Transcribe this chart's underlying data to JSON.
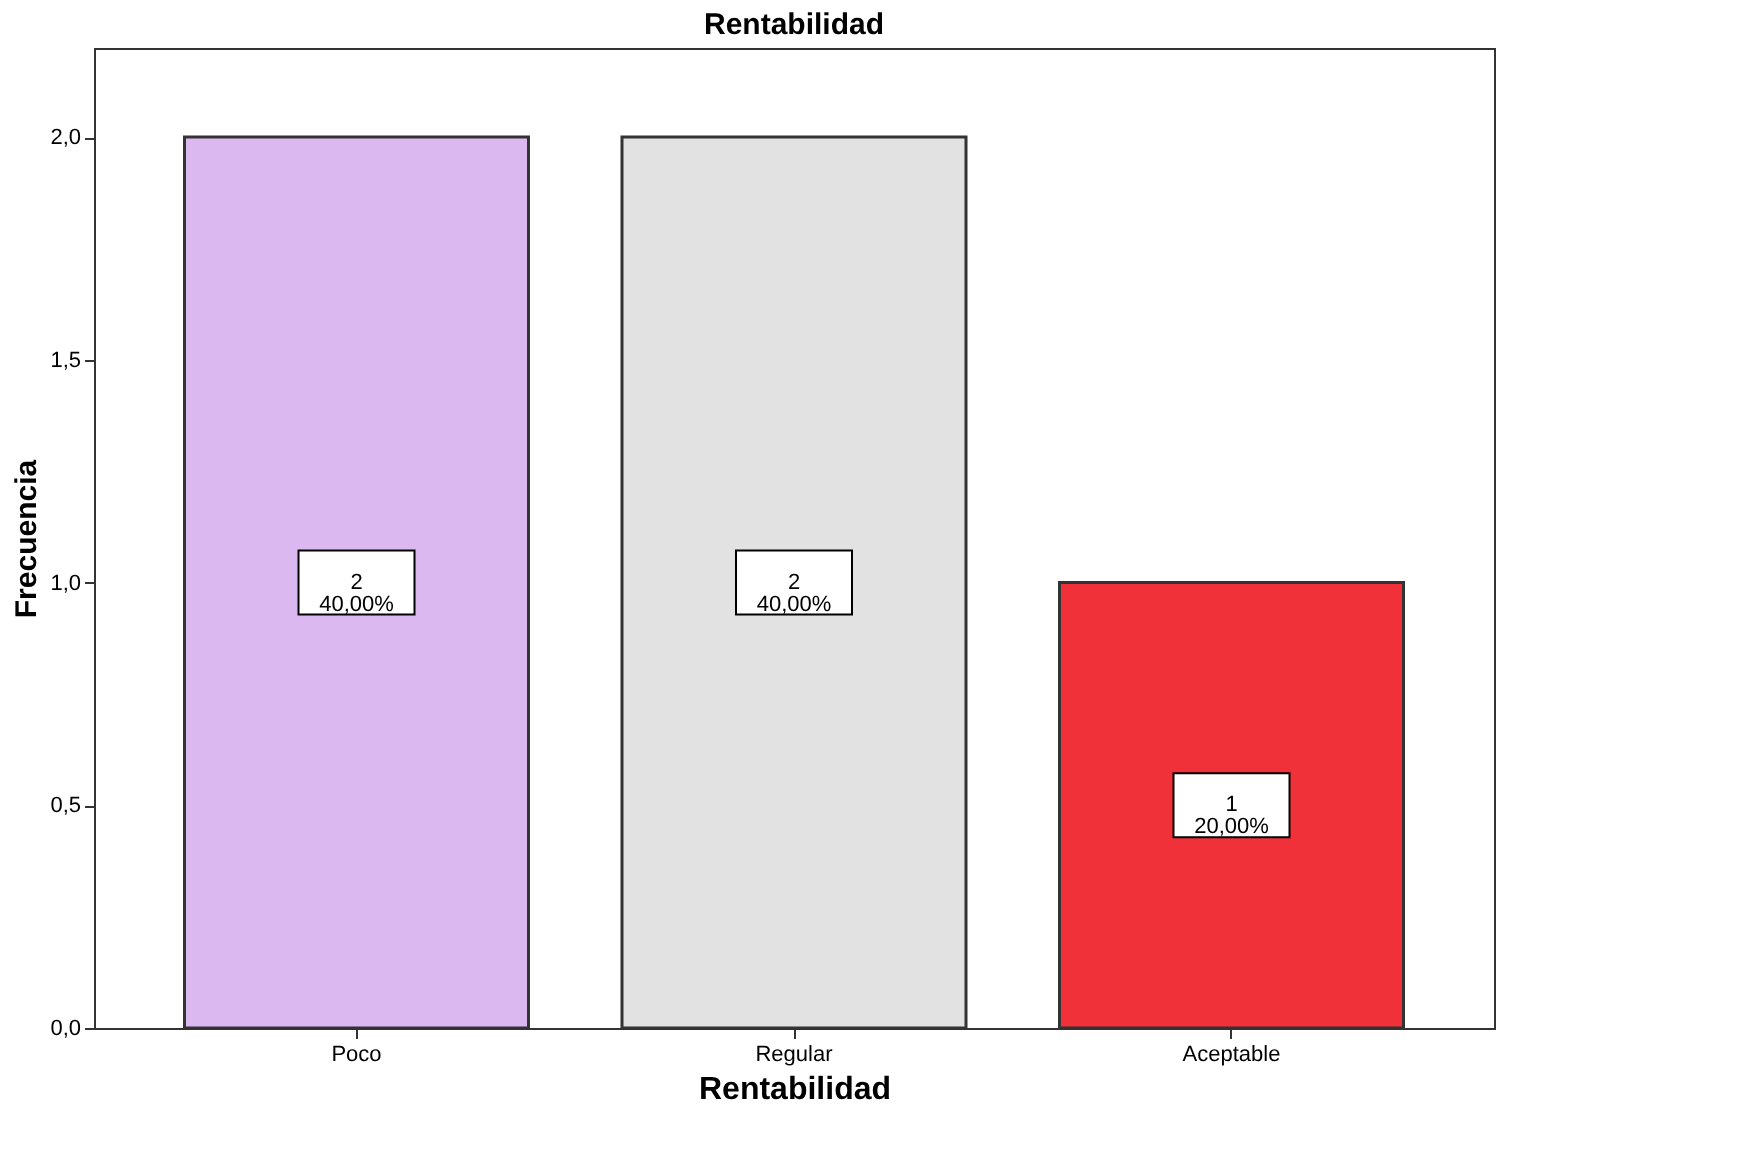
{
  "chart_data": {
    "type": "bar",
    "title": "Rentabilidad",
    "xlabel": "Rentabilidad",
    "ylabel": "Frecuencia",
    "categories": [
      "Poco",
      "Regular",
      "Aceptable"
    ],
    "values": [
      2,
      2,
      1
    ],
    "colors": [
      "#dcb8f0",
      "#e2e2e2",
      "#f0313a"
    ],
    "value_labels": [
      "2\n40,00%",
      "2\n40,00%",
      "1\n20,00%"
    ],
    "ylim": [
      0,
      2.2
    ],
    "yticks": [
      {
        "value": 0,
        "label": "0,0"
      },
      {
        "value": 0.5,
        "label": "0,5"
      },
      {
        "value": 1,
        "label": "1,0"
      },
      {
        "value": 1.5,
        "label": "1,5"
      },
      {
        "value": 2,
        "label": "2,0"
      }
    ],
    "grid": false
  }
}
